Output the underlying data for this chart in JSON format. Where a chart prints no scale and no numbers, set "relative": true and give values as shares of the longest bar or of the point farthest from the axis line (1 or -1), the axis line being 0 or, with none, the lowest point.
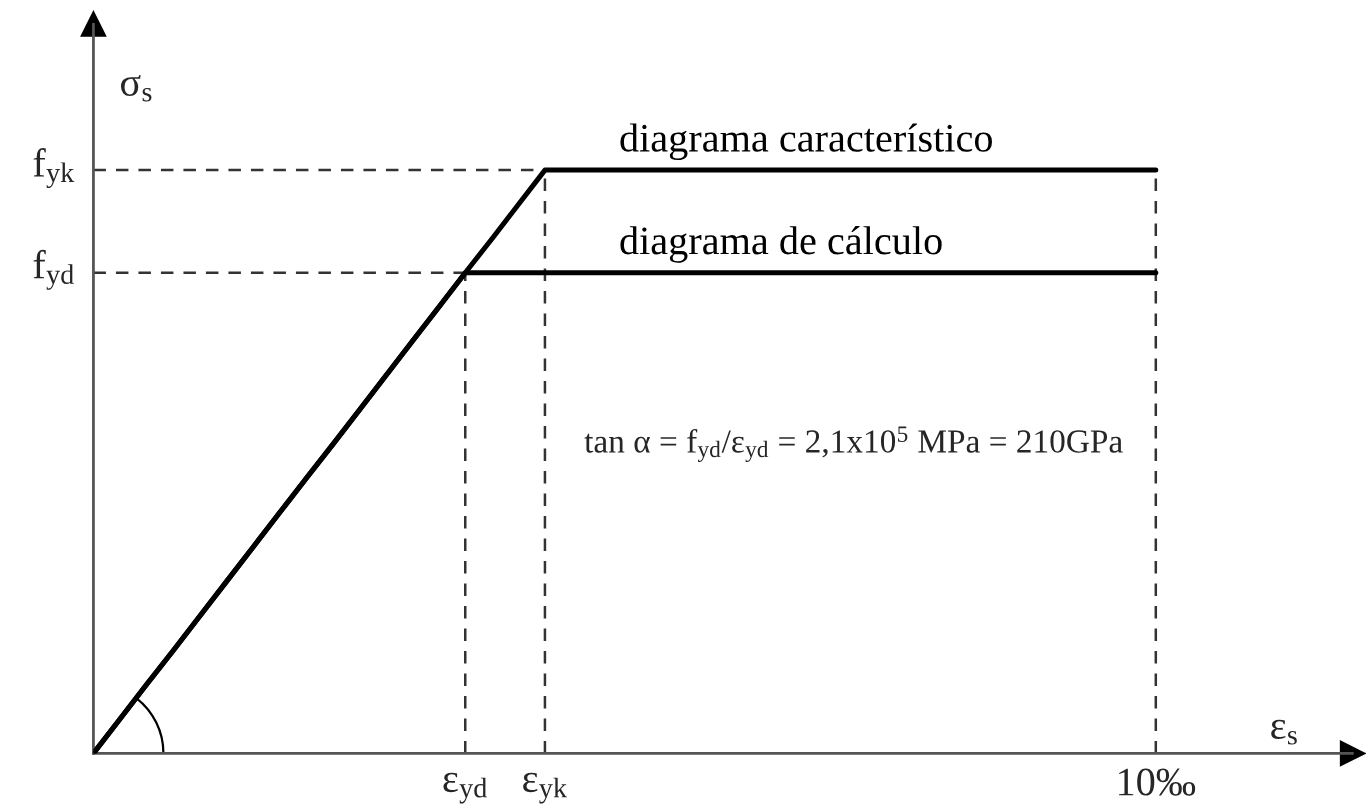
{
  "chart_data": {
    "type": "line",
    "xlabel": "ε$_{s}$",
    "ylabel": "σ$_{s}$",
    "relative": true,
    "categories": [
      null,
      null,
      null,
      null,
      null,
      null,
      null,
      null,
      null,
      null,
      null,
      null,
      null,
      null,
      "ε$_{yd}$",
      null,
      null,
      "ε$_{yk}$",
      null,
      null,
      null,
      null,
      null,
      null,
      null,
      null,
      null,
      null,
      null,
      null,
      null,
      null,
      null,
      null,
      null,
      null,
      null,
      null,
      null,
      null,
      "10‰",
      null,
      null,
      null,
      null,
      null,
      null,
      null
    ],
    "series": [
      {
        "name": "diagrama característico",
        "color": "#000000",
        "values": [
          0,
          0.059,
          0.118,
          0.176,
          0.235,
          0.294,
          0.353,
          0.412,
          0.471,
          0.529,
          0.588,
          0.647,
          0.706,
          0.765,
          0.824,
          0.882,
          0.941,
          1,
          1,
          1,
          1,
          1,
          1,
          1,
          1,
          1,
          1,
          1,
          1,
          1,
          1,
          1,
          1,
          1,
          1,
          1,
          1,
          1,
          1,
          1,
          1,
          null,
          null,
          null,
          null,
          null,
          null,
          null
        ]
      },
      {
        "name": "diagrama de cálculo",
        "color": "#000000",
        "values": [
          0,
          0.059,
          0.118,
          0.176,
          0.235,
          0.294,
          0.353,
          0.412,
          0.471,
          0.529,
          0.588,
          0.647,
          0.706,
          0.765,
          0.824,
          0.824,
          0.824,
          0.824,
          0.824,
          0.824,
          0.824,
          0.824,
          0.824,
          0.824,
          0.824,
          0.824,
          0.824,
          0.824,
          0.824,
          0.824,
          0.824,
          0.824,
          0.824,
          0.824,
          0.824,
          0.824,
          0.824,
          0.824,
          0.824,
          0.824,
          0.824,
          null,
          null,
          null,
          null,
          null,
          null,
          null
        ]
      },
      {
        "color": "#333333",
        "line_style": "dashed",
        "values": [
          1,
          1,
          1,
          1,
          1,
          1,
          1,
          1,
          1,
          1,
          1,
          1,
          1,
          1,
          1,
          1,
          1,
          1,
          null,
          null,
          null,
          null,
          null,
          null,
          null,
          null,
          null,
          null,
          null,
          null,
          null,
          null,
          null,
          null,
          null,
          null,
          null,
          null,
          null,
          null,
          null,
          null,
          null,
          null,
          null,
          null,
          null,
          null
        ]
      },
      {
        "color": "#333333",
        "line_style": "dashed",
        "values": [
          0.824,
          0.824,
          0.824,
          0.824,
          0.824,
          0.824,
          0.824,
          0.824,
          0.824,
          0.824,
          0.824,
          0.824,
          0.824,
          0.824,
          0.824,
          null,
          null,
          null,
          null,
          null,
          null,
          null,
          null,
          null,
          null,
          null,
          null,
          null,
          null,
          null,
          null,
          null,
          null,
          null,
          null,
          null,
          null,
          null,
          null,
          null,
          null,
          null,
          null,
          null,
          null,
          null,
          null,
          null
        ]
      },
      {
        "color": "#333333",
        "line_style": "dashed",
        "x": [
          "ε$_{yd}$",
          "ε$_{yd}$"
        ],
        "values": [
          0,
          0.824
        ]
      },
      {
        "color": "#333333",
        "line_style": "dashed",
        "x": [
          "ε$_{yk}$",
          "ε$_{yk}$"
        ],
        "values": [
          0,
          1
        ]
      },
      {
        "color": "#333333",
        "line_style": "dashed",
        "x": [
          "10‰",
          "10‰"
        ],
        "values": [
          0,
          1
        ]
      }
    ],
    "annotations": [
      "f$_{yk}$",
      "f$_{yd}$",
      "tan α = f$_{yd}$/ε$_{yd}$ = 2,1x10$^{5}$ MPa = 210GPa"
    ]
  }
}
